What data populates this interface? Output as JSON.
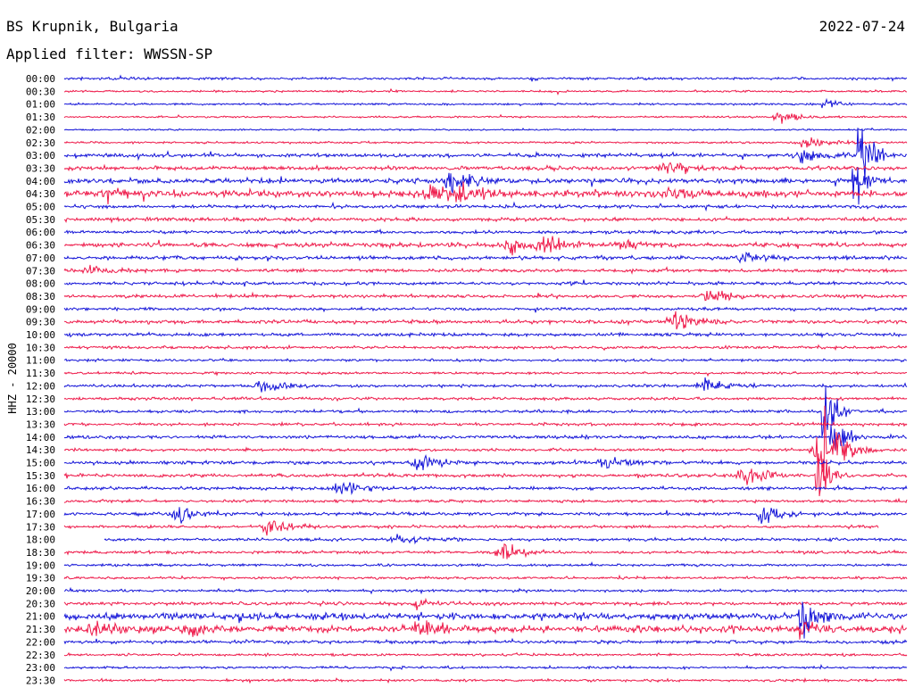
{
  "header": {
    "station": "BS Krupnik, Bulgaria",
    "date": "2022-07-24",
    "filter": "Applied filter: WWSSN-SP"
  },
  "chart_data": {
    "type": "line",
    "ylabel": "HHZ - 20000",
    "rows": [
      "00:00",
      "00:30",
      "01:00",
      "01:30",
      "02:00",
      "02:30",
      "03:00",
      "03:30",
      "04:00",
      "04:30",
      "05:00",
      "05:30",
      "06:00",
      "06:30",
      "07:00",
      "07:30",
      "08:00",
      "08:30",
      "09:00",
      "09:30",
      "10:00",
      "10:30",
      "11:00",
      "11:30",
      "12:00",
      "12:30",
      "13:00",
      "13:30",
      "14:00",
      "14:30",
      "15:00",
      "15:30",
      "16:00",
      "16:30",
      "17:00",
      "17:30",
      "18:00",
      "18:30",
      "19:00",
      "19:30",
      "20:00",
      "20:30",
      "21:00",
      "21:30",
      "22:00",
      "22:30",
      "23:00",
      "23:30"
    ],
    "colors": {
      "even": "#1515d8",
      "odd": "#ee1a4a"
    },
    "row_noise": [
      1.2,
      1.0,
      1.0,
      0.9,
      0.8,
      1.0,
      1.8,
      2.0,
      2.4,
      3.2,
      1.6,
      1.8,
      1.6,
      2.2,
      1.8,
      1.6,
      1.6,
      1.6,
      1.4,
      1.8,
      1.6,
      1.4,
      1.2,
      1.2,
      1.4,
      1.4,
      1.4,
      1.4,
      1.6,
      1.4,
      1.6,
      1.6,
      1.6,
      1.4,
      1.6,
      1.4,
      1.4,
      1.4,
      1.2,
      1.2,
      1.2,
      1.6,
      3.2,
      3.4,
      1.6,
      1.2,
      1.2,
      1.2
    ],
    "bursts": [
      {
        "row": 3,
        "minute": 25.5,
        "amp": 6
      },
      {
        "row": 5,
        "minute": 26.4,
        "amp": 5
      },
      {
        "row": 6,
        "minute": 26.3,
        "amp": 8
      },
      {
        "row": 7,
        "minute": 21.5,
        "amp": 7
      },
      {
        "row": 8,
        "minute": 13.8,
        "amp": 9
      },
      {
        "row": 9,
        "minute": 1.5,
        "amp": 6
      },
      {
        "row": 9,
        "minute": 13.0,
        "amp": 9
      },
      {
        "row": 9,
        "minute": 14.1,
        "amp": 8
      },
      {
        "row": 9,
        "minute": 21.5,
        "amp": 5
      },
      {
        "row": 13,
        "minute": 16.0,
        "amp": 8
      },
      {
        "row": 13,
        "minute": 17.1,
        "amp": 7
      },
      {
        "row": 13,
        "minute": 19.8,
        "amp": 6
      },
      {
        "row": 14,
        "minute": 24.3,
        "amp": 4
      },
      {
        "row": 15,
        "minute": 1.0,
        "amp": 5
      },
      {
        "row": 17,
        "minute": 23.0,
        "amp": 9
      },
      {
        "row": 19,
        "minute": 21.7,
        "amp": 9
      },
      {
        "row": 24,
        "minute": 7.1,
        "amp": 8
      },
      {
        "row": 24,
        "minute": 22.8,
        "amp": 8
      },
      {
        "row": 29,
        "minute": 26.9,
        "amp": 20
      },
      {
        "row": 30,
        "minute": 12.6,
        "amp": 7
      },
      {
        "row": 30,
        "minute": 19.3,
        "amp": 8
      },
      {
        "row": 31,
        "minute": 24.2,
        "amp": 10
      },
      {
        "row": 32,
        "minute": 9.9,
        "amp": 7
      },
      {
        "row": 34,
        "minute": 4.1,
        "amp": 7
      },
      {
        "row": 34,
        "minute": 24.9,
        "amp": 9
      },
      {
        "row": 35,
        "minute": 7.3,
        "amp": 8
      },
      {
        "row": 36,
        "minute": 11.8,
        "amp": 5
      },
      {
        "row": 37,
        "minute": 15.6,
        "amp": 9
      },
      {
        "row": 41,
        "minute": 12.6,
        "amp": 5
      },
      {
        "row": 42,
        "minute": 26.5,
        "amp": 6
      },
      {
        "row": 43,
        "minute": 1.0,
        "amp": 6
      },
      {
        "row": 43,
        "minute": 4.4,
        "amp": 6
      },
      {
        "row": 43,
        "minute": 12.7,
        "amp": 6
      }
    ],
    "spikes": [
      {
        "row": 2,
        "minute": 27.0,
        "amp": 8
      },
      {
        "row": 6,
        "minute": 28.3,
        "amp": 45
      },
      {
        "row": 8,
        "minute": 28.1,
        "amp": 40
      },
      {
        "row": 26,
        "minute": 27.0,
        "amp": 40
      },
      {
        "row": 28,
        "minute": 27.3,
        "amp": 35
      },
      {
        "row": 29,
        "minute": 27.0,
        "amp": 38
      },
      {
        "row": 31,
        "minute": 26.8,
        "amp": 38
      },
      {
        "row": 42,
        "minute": 26.2,
        "amp": 15
      },
      {
        "row": 43,
        "minute": 26.2,
        "amp": 14
      }
    ],
    "gaps": [
      {
        "row": 36,
        "start": 0,
        "end": 1.4
      },
      {
        "row": 35,
        "start": 29.0,
        "end": 30.0
      }
    ]
  }
}
